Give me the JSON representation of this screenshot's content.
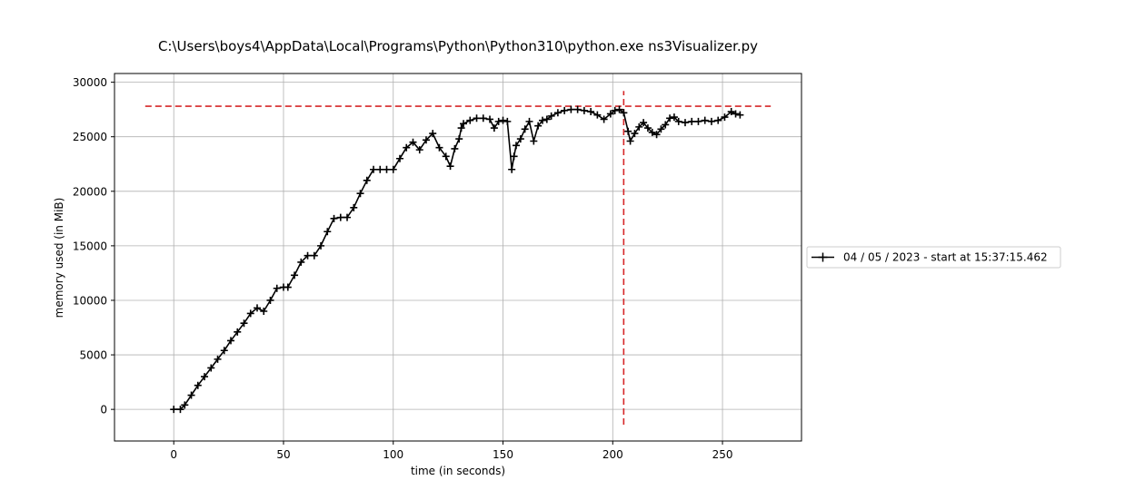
{
  "chart_data": {
    "type": "line",
    "title": "C:\\Users\\boys4\\AppData\\Local\\Programs\\Python\\Python310\\python.exe ns3Visualizer.py",
    "xlabel": "time (in seconds)",
    "ylabel": "memory used (in MiB)",
    "xlim": [
      -27,
      286
    ],
    "ylim": [
      -2900,
      30800
    ],
    "xticks": [
      0,
      50,
      100,
      150,
      200,
      250
    ],
    "yticks": [
      0,
      5000,
      10000,
      15000,
      20000,
      25000,
      30000
    ],
    "grid": true,
    "legend_position": "outside-right",
    "series": [
      {
        "name": "04 / 05 / 2023 - start at 15:37:15.462",
        "color": "#000000",
        "marker": "+",
        "x": [
          0,
          3,
          5,
          8,
          11,
          14,
          17,
          20,
          23,
          26,
          29,
          32,
          35,
          38,
          41,
          44,
          47,
          50,
          52,
          55,
          58,
          61,
          64,
          67,
          70,
          73,
          76,
          79,
          82,
          85,
          88,
          91,
          94,
          97,
          100,
          103,
          106,
          109,
          112,
          115,
          118,
          121,
          124,
          126,
          128,
          130,
          131,
          132,
          135,
          138,
          141,
          144,
          146,
          148,
          150,
          152,
          154,
          155,
          156,
          158,
          160,
          162,
          164,
          166,
          168,
          170,
          172,
          175,
          178,
          181,
          184,
          187,
          190,
          193,
          196,
          199,
          201,
          203,
          205,
          207,
          208,
          210,
          212,
          214,
          216,
          218,
          220,
          222,
          224,
          226,
          228,
          230,
          233,
          236,
          239,
          242,
          245,
          248,
          251,
          254,
          256,
          258
        ],
        "y": [
          0,
          0,
          400,
          1300,
          2200,
          3000,
          3800,
          4600,
          5400,
          6300,
          7100,
          7900,
          8800,
          9300,
          9000,
          10000,
          11100,
          11200,
          11200,
          12300,
          13500,
          14100,
          14100,
          15000,
          16300,
          17500,
          17600,
          17600,
          18500,
          19800,
          21000,
          22000,
          22000,
          22000,
          22000,
          23000,
          24000,
          24500,
          23800,
          24700,
          25300,
          24000,
          23200,
          22300,
          23900,
          24800,
          25800,
          26200,
          26500,
          26700,
          26700,
          26600,
          25800,
          26400,
          26500,
          26400,
          22000,
          23200,
          24200,
          24800,
          25700,
          26400,
          24600,
          26000,
          26500,
          26600,
          26900,
          27200,
          27400,
          27500,
          27500,
          27400,
          27300,
          27000,
          26600,
          27100,
          27400,
          27500,
          27200,
          25500,
          24600,
          25300,
          25900,
          26300,
          25800,
          25400,
          25200,
          25700,
          26100,
          26700,
          26800,
          26400,
          26300,
          26400,
          26400,
          26500,
          26400,
          26500,
          26800,
          27300,
          27100,
          27000
        ]
      }
    ],
    "reference_lines": [
      {
        "orientation": "horizontal",
        "value": 27800,
        "from": -13,
        "to": 272,
        "color": "#d62728",
        "style": "dashed"
      },
      {
        "orientation": "vertical",
        "value": 205,
        "from": -1400,
        "to": 29200,
        "color": "#d62728",
        "style": "dashed"
      }
    ]
  }
}
